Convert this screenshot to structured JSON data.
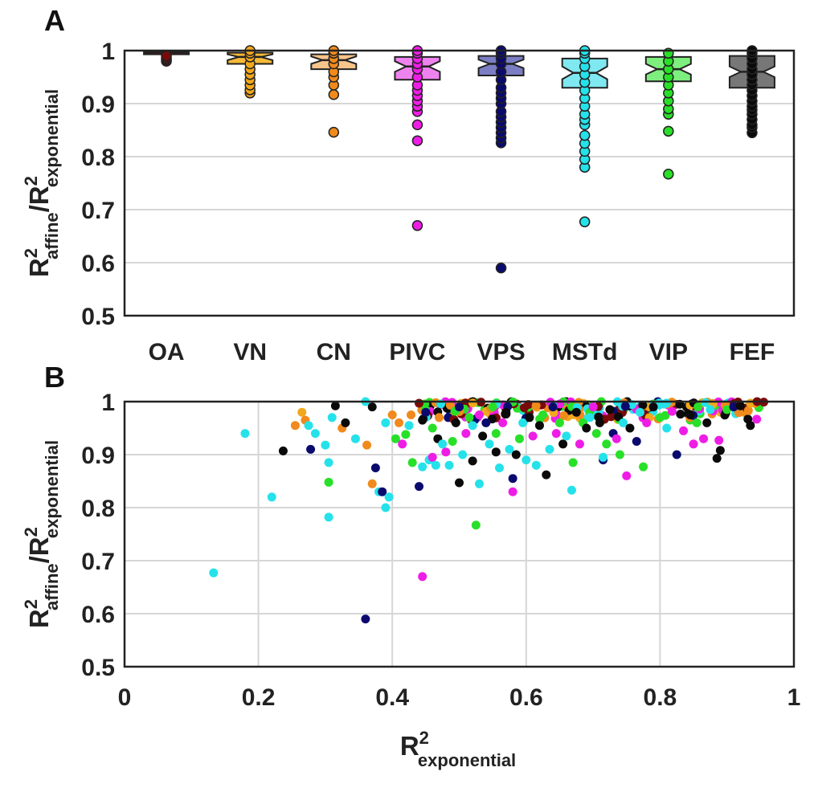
{
  "chart_data": [
    {
      "panel": "A",
      "type": "boxplot",
      "categories": [
        "OA",
        "VN",
        "CN",
        "PIVC",
        "VPS",
        "MSTd",
        "VIP",
        "FEF"
      ],
      "colors": [
        "#7a0a0a",
        "#f5b93a",
        "#f7c58c",
        "#ee82ee",
        "#7b7ec2",
        "#7fe8f0",
        "#7eef7e",
        "#777777"
      ],
      "outlier_colors": [
        "#7a0a0a",
        "#f2a81c",
        "#f08a1c",
        "#ee1de6",
        "#0a0a6e",
        "#25e2ea",
        "#28e028",
        "#0a0a0a"
      ],
      "ylim": [
        0.5,
        1
      ],
      "yticks": [
        "0.5",
        "0.6",
        "0.7",
        "0.8",
        "0.9",
        "1"
      ],
      "ylabel": {
        "base": "R",
        "sup1": "2",
        "sub1": "affine",
        "slash": "/R",
        "sup2": "2",
        "sub2": "exponential"
      },
      "boxes": [
        {
          "q1": 0.993,
          "median": 0.997,
          "q3": 1.0,
          "notch_lo": 0.995,
          "notch_hi": 0.998,
          "whisker_lo": 0.985,
          "whisker_hi": 1.0,
          "outliers": [
            0.98,
            0.983,
            0.986,
            0.99
          ]
        },
        {
          "q1": 0.975,
          "median": 0.988,
          "q3": 0.996,
          "notch_lo": 0.982,
          "notch_hi": 0.993,
          "whisker_lo": 0.965,
          "whisker_hi": 1.0,
          "outliers": [
            0.92,
            0.926,
            0.935,
            0.945,
            0.955,
            0.965,
            0.975,
            0.988,
            0.995,
            1.0
          ]
        },
        {
          "q1": 0.965,
          "median": 0.982,
          "q3": 0.993,
          "notch_lo": 0.975,
          "notch_hi": 0.989,
          "whisker_lo": 0.945,
          "whisker_hi": 1.0,
          "outliers": [
            0.846,
            0.917,
            0.935,
            0.95,
            0.96,
            0.975,
            0.985,
            0.995,
            1.0
          ]
        },
        {
          "q1": 0.945,
          "median": 0.97,
          "q3": 0.988,
          "notch_lo": 0.96,
          "notch_hi": 0.98,
          "whisker_lo": 0.92,
          "whisker_hi": 1.0,
          "outliers": [
            0.67,
            0.83,
            0.86,
            0.885,
            0.895,
            0.905,
            0.915,
            0.925,
            0.935,
            0.95,
            0.965,
            0.975,
            0.985,
            0.995,
            1.0
          ]
        },
        {
          "q1": 0.953,
          "median": 0.975,
          "q3": 0.99,
          "notch_lo": 0.967,
          "notch_hi": 0.983,
          "whisker_lo": 0.925,
          "whisker_hi": 1.0,
          "outliers": [
            0.59,
            0.826,
            0.835,
            0.845,
            0.855,
            0.865,
            0.875,
            0.885,
            0.9,
            0.91,
            0.92,
            0.93,
            0.945,
            0.96,
            0.975,
            0.985,
            0.995,
            1.0
          ]
        },
        {
          "q1": 0.93,
          "median": 0.958,
          "q3": 0.985,
          "notch_lo": 0.946,
          "notch_hi": 0.97,
          "whisker_lo": 0.895,
          "whisker_hi": 1.0,
          "outliers": [
            0.677,
            0.78,
            0.795,
            0.81,
            0.825,
            0.84,
            0.86,
            0.87,
            0.88,
            0.895,
            0.91,
            0.925,
            0.94,
            0.955,
            0.97,
            0.985,
            0.995,
            1.0
          ]
        },
        {
          "q1": 0.942,
          "median": 0.965,
          "q3": 0.988,
          "notch_lo": 0.955,
          "notch_hi": 0.975,
          "whisker_lo": 0.905,
          "whisker_hi": 1.0,
          "outliers": [
            0.767,
            0.848,
            0.88,
            0.89,
            0.905,
            0.92,
            0.935,
            0.95,
            0.965,
            0.98,
            0.995
          ]
        },
        {
          "q1": 0.93,
          "median": 0.96,
          "q3": 0.99,
          "notch_lo": 0.95,
          "notch_hi": 0.97,
          "whisker_lo": 0.885,
          "whisker_hi": 1.0,
          "outliers": [
            0.845,
            0.855,
            0.86,
            0.87,
            0.88,
            0.888,
            0.895,
            0.905,
            0.915,
            0.925,
            0.935,
            0.945,
            0.955,
            0.965,
            0.975,
            0.985,
            0.995,
            1.0
          ]
        }
      ]
    },
    {
      "panel": "B",
      "type": "scatter",
      "xlim": [
        0,
        1
      ],
      "ylim": [
        0.5,
        1
      ],
      "xticks": [
        "0",
        "0.2",
        "0.4",
        "0.6",
        "0.8",
        "1"
      ],
      "yticks": [
        "0.5",
        "0.6",
        "0.7",
        "0.8",
        "0.9",
        "1"
      ],
      "ylabel": {
        "base": "R",
        "sup1": "2",
        "sub1": "affine",
        "slash": "/R",
        "sup2": "2",
        "sub2": "exponential"
      },
      "xlabel": {
        "base": "R",
        "sup": "2",
        "sub": "exponential"
      },
      "series_colors": {
        "OA": "#7a0a0a",
        "VN": "#f2a81c",
        "CN": "#f08a1c",
        "PIVC": "#ee1de6",
        "VPS": "#0a0a6e",
        "MSTd": "#25e2ea",
        "VIP": "#28e028",
        "FEF": "#0a0a0a"
      },
      "points": [
        {
          "area": "MSTd",
          "x": 0.133,
          "y": 0.677
        },
        {
          "area": "MSTd",
          "x": 0.18,
          "y": 0.94
        },
        {
          "area": "MSTd",
          "x": 0.22,
          "y": 0.82
        },
        {
          "area": "FEF",
          "x": 0.237,
          "y": 0.907
        },
        {
          "area": "CN",
          "x": 0.255,
          "y": 0.955
        },
        {
          "area": "VN",
          "x": 0.265,
          "y": 0.98
        },
        {
          "area": "CN",
          "x": 0.27,
          "y": 0.965
        },
        {
          "area": "MSTd",
          "x": 0.275,
          "y": 0.955
        },
        {
          "area": "VPS",
          "x": 0.278,
          "y": 0.91
        },
        {
          "area": "MSTd",
          "x": 0.285,
          "y": 0.94
        },
        {
          "area": "MSTd",
          "x": 0.3,
          "y": 0.918
        },
        {
          "area": "MSTd",
          "x": 0.305,
          "y": 0.885
        },
        {
          "area": "VIP",
          "x": 0.305,
          "y": 0.848
        },
        {
          "area": "MSTd",
          "x": 0.305,
          "y": 0.782
        },
        {
          "area": "MSTd",
          "x": 0.31,
          "y": 0.97
        },
        {
          "area": "FEF",
          "x": 0.315,
          "y": 0.992
        },
        {
          "area": "CN",
          "x": 0.325,
          "y": 0.95
        },
        {
          "area": "FEF",
          "x": 0.33,
          "y": 0.96
        },
        {
          "area": "MSTd",
          "x": 0.345,
          "y": 0.93
        },
        {
          "area": "VPS",
          "x": 0.36,
          "y": 0.59
        },
        {
          "area": "MSTd",
          "x": 0.36,
          "y": 1.0
        },
        {
          "area": "CN",
          "x": 0.362,
          "y": 0.918
        },
        {
          "area": "FEF",
          "x": 0.37,
          "y": 0.99
        },
        {
          "area": "CN",
          "x": 0.37,
          "y": 0.845
        },
        {
          "area": "VPS",
          "x": 0.375,
          "y": 0.875
        },
        {
          "area": "MSTd",
          "x": 0.38,
          "y": 0.83
        },
        {
          "area": "VPS",
          "x": 0.385,
          "y": 0.83
        },
        {
          "area": "MSTd",
          "x": 0.39,
          "y": 0.8
        },
        {
          "area": "MSTd",
          "x": 0.395,
          "y": 0.82
        },
        {
          "area": "MSTd",
          "x": 0.39,
          "y": 0.96
        },
        {
          "area": "CN",
          "x": 0.4,
          "y": 0.975
        },
        {
          "area": "VIP",
          "x": 0.405,
          "y": 0.93
        },
        {
          "area": "CN",
          "x": 0.41,
          "y": 0.96
        },
        {
          "area": "PIVC",
          "x": 0.415,
          "y": 0.92
        },
        {
          "area": "VIP",
          "x": 0.42,
          "y": 0.938
        },
        {
          "area": "MSTd",
          "x": 0.425,
          "y": 0.955
        },
        {
          "area": "CN",
          "x": 0.428,
          "y": 0.975
        },
        {
          "area": "VIP",
          "x": 0.43,
          "y": 0.885
        },
        {
          "area": "OA",
          "x": 0.44,
          "y": 0.997
        },
        {
          "area": "VPS",
          "x": 0.44,
          "y": 0.84
        },
        {
          "area": "PIVC",
          "x": 0.445,
          "y": 0.67
        },
        {
          "area": "MSTd",
          "x": 0.445,
          "y": 0.877
        },
        {
          "area": "FEF",
          "x": 0.445,
          "y": 0.965
        },
        {
          "area": "VPS",
          "x": 0.45,
          "y": 0.98
        },
        {
          "area": "MSTd",
          "x": 0.455,
          "y": 0.89
        },
        {
          "area": "PIVC",
          "x": 0.46,
          "y": 0.895
        },
        {
          "area": "VIP",
          "x": 0.46,
          "y": 0.95
        },
        {
          "area": "MSTd",
          "x": 0.465,
          "y": 0.88
        },
        {
          "area": "FEF",
          "x": 0.468,
          "y": 0.93
        },
        {
          "area": "CN",
          "x": 0.47,
          "y": 0.97
        },
        {
          "area": "MSTd",
          "x": 0.475,
          "y": 0.92
        },
        {
          "area": "PIVC",
          "x": 0.48,
          "y": 0.905
        },
        {
          "area": "MSTd",
          "x": 0.485,
          "y": 0.88
        },
        {
          "area": "VIP",
          "x": 0.49,
          "y": 0.925
        },
        {
          "area": "FEF",
          "x": 0.495,
          "y": 0.96
        },
        {
          "area": "FEF",
          "x": 0.5,
          "y": 0.847
        },
        {
          "area": "VPS",
          "x": 0.5,
          "y": 0.99
        },
        {
          "area": "MSTd",
          "x": 0.505,
          "y": 0.9
        },
        {
          "area": "PIVC",
          "x": 0.51,
          "y": 0.94
        },
        {
          "area": "VIP",
          "x": 0.515,
          "y": 0.97
        },
        {
          "area": "MSTd",
          "x": 0.52,
          "y": 0.955
        },
        {
          "area": "FEF",
          "x": 0.52,
          "y": 0.888
        },
        {
          "area": "VIP",
          "x": 0.525,
          "y": 0.767
        },
        {
          "area": "MSTd",
          "x": 0.53,
          "y": 0.845
        },
        {
          "area": "PIVC",
          "x": 0.53,
          "y": 0.975
        },
        {
          "area": "FEF",
          "x": 0.535,
          "y": 0.935
        },
        {
          "area": "VPS",
          "x": 0.54,
          "y": 0.96
        },
        {
          "area": "MSTd",
          "x": 0.545,
          "y": 0.92
        },
        {
          "area": "VIP",
          "x": 0.55,
          "y": 0.99
        },
        {
          "area": "FEF",
          "x": 0.555,
          "y": 0.905
        },
        {
          "area": "VIP",
          "x": 0.555,
          "y": 0.94
        },
        {
          "area": "MSTd",
          "x": 0.56,
          "y": 0.875
        },
        {
          "area": "PIVC",
          "x": 0.565,
          "y": 0.96
        },
        {
          "area": "FEF",
          "x": 0.57,
          "y": 0.98
        },
        {
          "area": "MSTd",
          "x": 0.575,
          "y": 0.91
        },
        {
          "area": "PIVC",
          "x": 0.58,
          "y": 0.83
        },
        {
          "area": "VPS",
          "x": 0.58,
          "y": 0.855
        },
        {
          "area": "FEF",
          "x": 0.585,
          "y": 0.9
        },
        {
          "area": "VIP",
          "x": 0.59,
          "y": 0.93
        },
        {
          "area": "MSTd",
          "x": 0.595,
          "y": 0.96
        },
        {
          "area": "MSTd",
          "x": 0.6,
          "y": 0.89
        },
        {
          "area": "FEF",
          "x": 0.605,
          "y": 0.97
        },
        {
          "area": "PIVC",
          "x": 0.61,
          "y": 0.935
        },
        {
          "area": "MSTd",
          "x": 0.615,
          "y": 0.88
        },
        {
          "area": "FEF",
          "x": 0.62,
          "y": 0.955
        },
        {
          "area": "VIP",
          "x": 0.625,
          "y": 0.975
        },
        {
          "area": "FEF",
          "x": 0.63,
          "y": 0.862
        },
        {
          "area": "MSTd",
          "x": 0.635,
          "y": 0.91
        },
        {
          "area": "VPS",
          "x": 0.64,
          "y": 0.99
        },
        {
          "area": "PIVC",
          "x": 0.645,
          "y": 0.94
        },
        {
          "area": "VIP",
          "x": 0.65,
          "y": 0.96
        },
        {
          "area": "FEF",
          "x": 0.655,
          "y": 0.92
        },
        {
          "area": "MSTd",
          "x": 0.66,
          "y": 0.935
        },
        {
          "area": "MSTd",
          "x": 0.668,
          "y": 0.833
        },
        {
          "area": "VIP",
          "x": 0.67,
          "y": 0.885
        },
        {
          "area": "FEF",
          "x": 0.675,
          "y": 0.98
        },
        {
          "area": "PIVC",
          "x": 0.68,
          "y": 0.92
        },
        {
          "area": "VIP",
          "x": 0.685,
          "y": 0.96
        },
        {
          "area": "FEF",
          "x": 0.69,
          "y": 0.95
        },
        {
          "area": "MSTd",
          "x": 0.695,
          "y": 0.97
        },
        {
          "area": "PIVC",
          "x": 0.7,
          "y": 0.99
        },
        {
          "area": "VIP",
          "x": 0.705,
          "y": 0.94
        },
        {
          "area": "FEF",
          "x": 0.71,
          "y": 0.96
        },
        {
          "area": "VPS",
          "x": 0.715,
          "y": 0.89
        },
        {
          "area": "MSTd",
          "x": 0.715,
          "y": 0.895
        },
        {
          "area": "VIP",
          "x": 0.72,
          "y": 0.92
        },
        {
          "area": "FEF",
          "x": 0.725,
          "y": 0.985
        },
        {
          "area": "VPS",
          "x": 0.73,
          "y": 0.94
        },
        {
          "area": "PIVC",
          "x": 0.735,
          "y": 0.93
        },
        {
          "area": "VIP",
          "x": 0.74,
          "y": 0.9
        },
        {
          "area": "MSTd",
          "x": 0.745,
          "y": 0.96
        },
        {
          "area": "PIVC",
          "x": 0.75,
          "y": 0.86
        },
        {
          "area": "FEF",
          "x": 0.755,
          "y": 0.95
        },
        {
          "area": "VPS",
          "x": 0.765,
          "y": 0.925
        },
        {
          "area": "MSTd",
          "x": 0.77,
          "y": 0.98
        },
        {
          "area": "VIP",
          "x": 0.775,
          "y": 0.877
        },
        {
          "area": "PIVC",
          "x": 0.78,
          "y": 0.96
        },
        {
          "area": "FEF",
          "x": 0.79,
          "y": 0.99
        },
        {
          "area": "VIP",
          "x": 0.8,
          "y": 0.97
        },
        {
          "area": "MSTd",
          "x": 0.81,
          "y": 0.95
        },
        {
          "area": "VPS",
          "x": 0.825,
          "y": 0.9
        },
        {
          "area": "PIVC",
          "x": 0.835,
          "y": 0.945
        },
        {
          "area": "FEF",
          "x": 0.845,
          "y": 0.975
        },
        {
          "area": "PIVC",
          "x": 0.85,
          "y": 0.92
        },
        {
          "area": "VIP",
          "x": 0.855,
          "y": 0.96
        },
        {
          "area": "PIVC",
          "x": 0.865,
          "y": 0.93
        },
        {
          "area": "FEF",
          "x": 0.87,
          "y": 0.96
        },
        {
          "area": "MSTd",
          "x": 0.875,
          "y": 0.985
        },
        {
          "area": "FEF",
          "x": 0.885,
          "y": 0.893
        },
        {
          "area": "PIVC",
          "x": 0.888,
          "y": 0.927
        },
        {
          "area": "FEF",
          "x": 0.89,
          "y": 0.908
        },
        {
          "area": "VIP",
          "x": 0.9,
          "y": 0.985
        },
        {
          "area": "VPS",
          "x": 0.91,
          "y": 0.99
        },
        {
          "area": "FEF",
          "x": 0.92,
          "y": 0.992
        },
        {
          "area": "FEF",
          "x": 0.935,
          "y": 0.955
        },
        {
          "area": "VN",
          "x": 0.935,
          "y": 0.997
        },
        {
          "area": "OA",
          "x": 0.945,
          "y": 1.0
        },
        {
          "area": "OA",
          "x": 0.955,
          "y": 0.999
        }
      ],
      "dense_band": {
        "x_range": [
          0.44,
          0.95
        ],
        "y_range": [
          0.965,
          1.0
        ],
        "count": 220,
        "areas": [
          "OA",
          "VN",
          "CN",
          "PIVC",
          "VPS",
          "MSTd",
          "VIP",
          "FEF"
        ]
      }
    }
  ],
  "labels": {
    "panel_a": "A",
    "panel_b": "B"
  }
}
